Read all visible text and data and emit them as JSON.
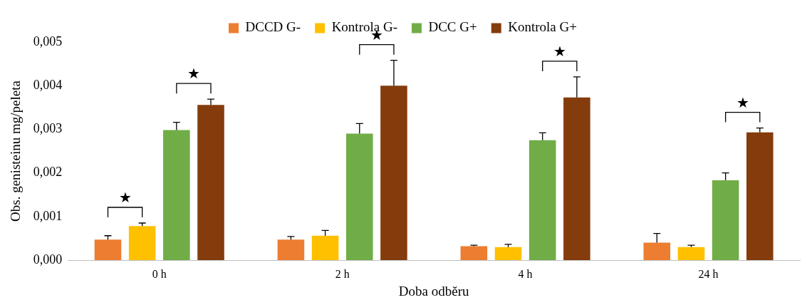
{
  "chart_data": {
    "type": "bar",
    "xlabel": "Doba odběru",
    "ylabel": "Obs. genisteinu mg/peleta",
    "categories": [
      "0 h",
      "2 h",
      "4 h",
      "24 h"
    ],
    "series": [
      {
        "name": "DCCD G-",
        "color": "#ed7d31",
        "values": [
          0.00047,
          0.00047,
          0.00032,
          0.0004
        ],
        "errors": [
          [
            0.00047,
            0.00056
          ],
          [
            0.00047,
            0.00054
          ],
          [
            0.00032,
            0.00034
          ],
          [
            0.0004,
            0.00061
          ]
        ]
      },
      {
        "name": "Kontrola G-",
        "color": "#ffc000",
        "values": [
          0.00078,
          0.00056,
          0.0003,
          0.0003
        ],
        "errors": [
          [
            0.00078,
            0.00085
          ],
          [
            0.00056,
            0.00068
          ],
          [
            0.0003,
            0.00036
          ],
          [
            0.0003,
            0.00034
          ]
        ]
      },
      {
        "name": "DCC G+",
        "color": "#70ad47",
        "values": [
          0.00298,
          0.0029,
          0.00275,
          0.00183
        ],
        "errors": [
          [
            0.00298,
            0.00316
          ],
          [
            0.0029,
            0.00313
          ],
          [
            0.00275,
            0.00292
          ],
          [
            0.00183,
            0.002
          ]
        ]
      },
      {
        "name": "Kontrola G+",
        "color": "#843c0c",
        "values": [
          0.00356,
          0.004,
          0.00373,
          0.00293
        ],
        "errors": [
          [
            0.00356,
            0.00369
          ],
          [
            0.004,
            0.00458
          ],
          [
            0.00373,
            0.0042
          ],
          [
            0.00293,
            0.00303
          ]
        ]
      }
    ],
    "ylim": [
      0,
      0.005
    ],
    "yticks": [
      {
        "value": 0,
        "label": "0,000"
      },
      {
        "value": 0.001,
        "label": "0,001"
      },
      {
        "value": 0.002,
        "label": "0,002"
      },
      {
        "value": 0.003,
        "label": "0,003"
      },
      {
        "value": 0.004,
        "label": "0,004"
      },
      {
        "value": 0.005,
        "label": "0,005"
      }
    ],
    "annotations": [
      "★",
      "★",
      "★",
      "★",
      "★"
    ],
    "legend": "top",
    "grid": false
  }
}
